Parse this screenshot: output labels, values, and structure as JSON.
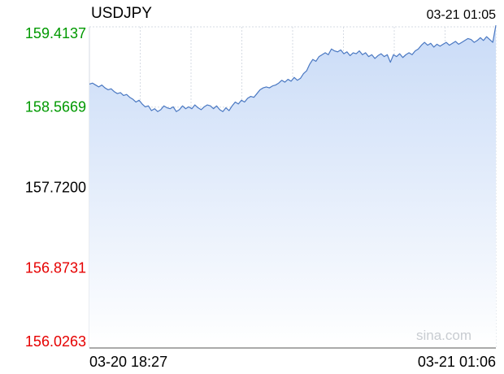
{
  "symbol": "USDJPY",
  "timestamp": "03-21 01:05",
  "watermark": "sina.com",
  "colors": {
    "up": "#009900",
    "down": "#e60000",
    "neutral": "#000000",
    "line": "#4a78c2",
    "area_top": "#c9dbf7",
    "area_bottom": "#ffffff",
    "grid": "#d6dbe3",
    "watermark": "#c8ccd1"
  },
  "chart_data": {
    "type": "area",
    "title": "USDJPY",
    "ylim": [
      156.0263,
      159.4137
    ],
    "reference_price": 157.72,
    "y_ticks": [
      {
        "label": "159.4137",
        "value": 159.4137,
        "color": "up"
      },
      {
        "label": "158.5669",
        "value": 158.5669,
        "color": "up"
      },
      {
        "label": "157.7200",
        "value": 157.72,
        "color": "neutral"
      },
      {
        "label": "156.8731",
        "value": 156.8731,
        "color": "down"
      },
      {
        "label": "156.0263",
        "value": 156.0263,
        "color": "down"
      }
    ],
    "x_labels": [
      {
        "label": "03-20 18:27",
        "align": "start"
      },
      {
        "label": "03-21 01:06",
        "align": "end"
      }
    ],
    "x_range": [
      "03-20 18:27",
      "03-21 01:06"
    ],
    "vertical_grid_count": 8,
    "grid": true,
    "series": [
      {
        "values": [
          158.81,
          158.82,
          158.8,
          158.78,
          158.8,
          158.77,
          158.75,
          158.76,
          158.73,
          158.71,
          158.72,
          158.69,
          158.7,
          158.67,
          158.65,
          158.62,
          158.64,
          158.6,
          158.57,
          158.58,
          158.53,
          158.55,
          158.52,
          158.54,
          158.58,
          158.56,
          158.55,
          158.57,
          158.52,
          158.54,
          158.58,
          158.55,
          158.57,
          158.55,
          158.59,
          158.56,
          158.54,
          158.57,
          158.59,
          158.58,
          158.55,
          158.58,
          158.54,
          158.52,
          158.56,
          158.53,
          158.58,
          158.62,
          158.6,
          158.64,
          158.62,
          158.66,
          158.68,
          158.67,
          158.71,
          158.75,
          158.77,
          158.78,
          158.77,
          158.79,
          158.8,
          158.82,
          158.85,
          158.83,
          158.86,
          158.84,
          158.88,
          158.85,
          158.87,
          158.92,
          158.95,
          159.02,
          159.07,
          159.05,
          159.1,
          159.12,
          159.14,
          159.12,
          159.18,
          159.16,
          159.15,
          159.17,
          159.13,
          159.15,
          159.11,
          159.14,
          159.13,
          159.16,
          159.12,
          159.14,
          159.1,
          159.12,
          159.08,
          159.11,
          159.13,
          159.1,
          159.12,
          159.04,
          159.12,
          159.1,
          159.13,
          159.09,
          159.12,
          159.14,
          159.12,
          159.16,
          159.18,
          159.22,
          159.25,
          159.22,
          159.24,
          159.2,
          159.23,
          159.21,
          159.23,
          159.25,
          159.22,
          159.24,
          159.26,
          159.23,
          159.25,
          159.27,
          159.29,
          159.28,
          159.25,
          159.27,
          159.3,
          159.27,
          159.31,
          159.28,
          159.25,
          159.43
        ]
      }
    ]
  }
}
